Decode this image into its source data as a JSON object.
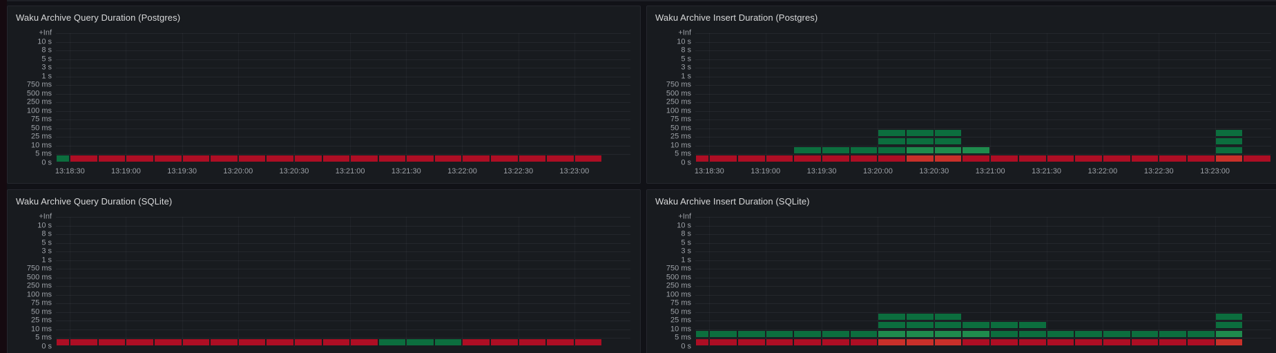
{
  "colors": {
    "page_bg": "#111217",
    "panel_bg": "#181b1f",
    "panel_border": "#25272e",
    "title": "#d8d9da",
    "axis_text": "#9da1a7",
    "cell_red": "#ad0e24",
    "cell_red_bright": "#c9302a",
    "cell_green": "#0c6e3e",
    "cell_green_bright": "#1f8b4d"
  },
  "cell_encoding": {
    "r": "red bucket (high count)",
    "R": "bright red bucket (highest count)",
    "g": "green bucket (low count)",
    "G": "lighter green bucket (moderate count)",
    ".": "empty (no samples)"
  },
  "band_note": "rows is keyed by band index 0-14; band i lies between y_bucket_labels[i] (top) and y_bucket_labels[i+1] (bottom). Each string has 21 chars = 21 time columns of 15s, col 0 half-width at left edge, starting 13:18:15.",
  "chart_data": [
    {
      "type": "heatmap",
      "title": "Waku Archive Query Duration (Postgres)",
      "y_bucket_labels": [
        "+Inf",
        "10 s",
        "8 s",
        "5 s",
        "3 s",
        "1 s",
        "750 ms",
        "500 ms",
        "250 ms",
        "100 ms",
        "75 ms",
        "50 ms",
        "25 ms",
        "10 ms",
        "5 ms",
        "0 s"
      ],
      "x_ticks": [
        "13:18:30",
        "13:19:00",
        "13:19:30",
        "13:20:00",
        "13:20:30",
        "13:21:00",
        "13:21:30",
        "13:22:00",
        "13:22:30",
        "13:23:00"
      ],
      "time_step_s": 15,
      "rows": {
        "14": "grrrrrrrrrrrrrrrrrrr."
      }
    },
    {
      "type": "heatmap",
      "title": "Waku Archive Insert Duration (Postgres)",
      "y_bucket_labels": [
        "+Inf",
        "10 s",
        "8 s",
        "5 s",
        "3 s",
        "1 s",
        "750 ms",
        "500 ms",
        "250 ms",
        "100 ms",
        "75 ms",
        "50 ms",
        "25 ms",
        "10 ms",
        "5 ms",
        "0 s"
      ],
      "x_ticks": [
        "13:18:30",
        "13:19:00",
        "13:19:30",
        "13:20:00",
        "13:20:30",
        "13:21:00",
        "13:21:30",
        "13:22:00",
        "13:22:30",
        "13:23:00"
      ],
      "time_step_s": 15,
      "rows": {
        "11": ".......ggg.........g.",
        "12": ".......ggg.........g.",
        "13": "....ggggGGG........g.",
        "14": "rrrrrrrrRRrrrrrrrrrRr"
      }
    },
    {
      "type": "heatmap",
      "title": "Waku Archive Query Duration (SQLite)",
      "y_bucket_labels": [
        "+Inf",
        "10 s",
        "8 s",
        "5 s",
        "3 s",
        "1 s",
        "750 ms",
        "500 ms",
        "250 ms",
        "100 ms",
        "75 ms",
        "50 ms",
        "25 ms",
        "10 ms",
        "5 ms",
        "0 s"
      ],
      "x_ticks": [],
      "time_step_s": 15,
      "rows": {
        "14": "rrrrrrrrrrrrgggrrrrr."
      }
    },
    {
      "type": "heatmap",
      "title": "Waku Archive Insert Duration (SQLite)",
      "y_bucket_labels": [
        "+Inf",
        "10 s",
        "8 s",
        "5 s",
        "3 s",
        "1 s",
        "750 ms",
        "500 ms",
        "250 ms",
        "100 ms",
        "75 ms",
        "50 ms",
        "25 ms",
        "10 ms",
        "5 ms",
        "0 s"
      ],
      "x_ticks": [],
      "time_step_s": 15,
      "rows": {
        "11": ".......ggg.........g.",
        "12": ".......gggggg......g.",
        "13": "gggggggGGGGggggggggG.",
        "14": "rrrrrrrRRRrrrrrrrrrR."
      }
    }
  ],
  "layout_hints": {
    "columns_total": 20.5,
    "bands": 15,
    "x_tick_every_n_columns": 2,
    "grid": "on",
    "legend": "none"
  }
}
